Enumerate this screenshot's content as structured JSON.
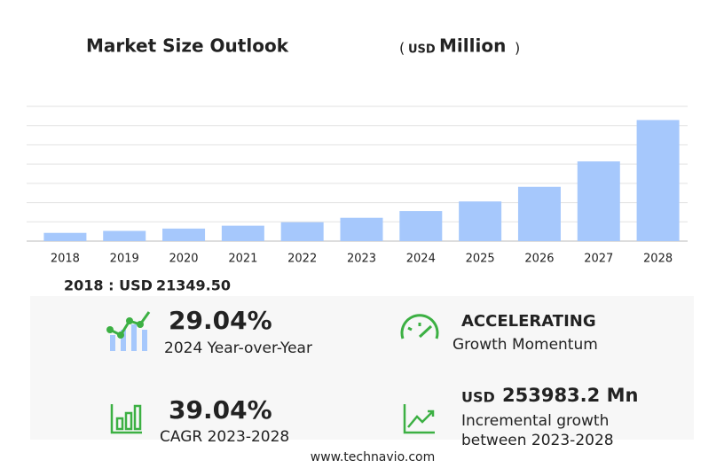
{
  "chart_data": {
    "type": "bar",
    "title": "Market Size Outlook",
    "unit_open": "(",
    "unit": "USD",
    "unit_label": "Million",
    "unit_close": ")",
    "categories": [
      "2018",
      "2019",
      "2020",
      "2021",
      "2022",
      "2023",
      "2024",
      "2025",
      "2026",
      "2027",
      "2028"
    ],
    "values": [
      21349.5,
      26500,
      32500,
      40000,
      49000,
      60530,
      78110,
      103000,
      141000,
      207000,
      314510
    ],
    "color": "#a6c8fc",
    "ylim": [
      0,
      350000
    ],
    "yticks": [
      0,
      50000,
      100000,
      150000,
      200000,
      250000,
      300000,
      350000
    ],
    "grid": true
  },
  "summary": {
    "base": {
      "label": "2018 : USD",
      "value": "21349.50"
    },
    "yoy": {
      "value": "29.04%",
      "label": "2024 Year-over-Year"
    },
    "momentum": {
      "value": "ACCELERATING",
      "label": "Growth Momentum"
    },
    "cagr": {
      "value": "39.04%",
      "label": "CAGR 2023-2028"
    },
    "incremental": {
      "unit": "USD",
      "value": "253983.2 Mn",
      "label1": "Incremental growth",
      "label2": "between 2023-2028"
    },
    "footer": "www.technavio.com"
  }
}
